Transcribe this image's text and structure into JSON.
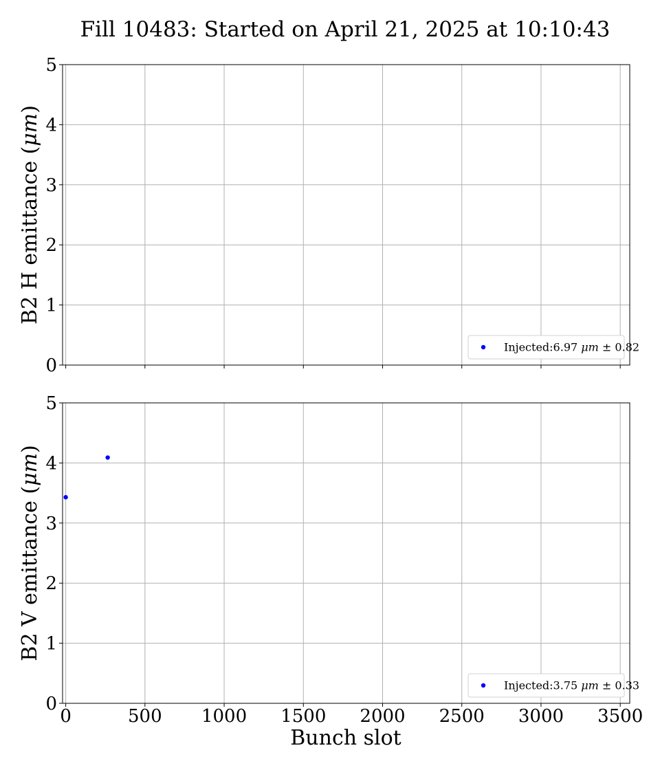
{
  "chart_data": {
    "title": "Fill 10483: Started on April 21, 2025 at 10:10:43",
    "xlabel": "Bunch slot",
    "xlim": [
      -20,
      3560
    ],
    "xticks": [
      0,
      500,
      1000,
      1500,
      2000,
      2500,
      3000,
      3500
    ],
    "marker_color": "#0000ff",
    "grid": true,
    "panels": [
      {
        "type": "scatter",
        "ylabel": "B2 H emittance (μm)",
        "ylabel_parts": [
          "B2 H emittance (",
          "μm",
          ")"
        ],
        "ylim": [
          0,
          5
        ],
        "yticks": [
          0,
          1,
          2,
          3,
          4,
          5
        ],
        "legend_position": "lower right",
        "series": [
          {
            "name": "Injected:6.97 μm ± 0.82",
            "legend_parts": [
              "Injected:6.97 ",
              "μm",
              " ± 0.82"
            ],
            "x": [],
            "y": []
          }
        ]
      },
      {
        "type": "scatter",
        "ylabel": "B2 V emittance (μm)",
        "ylabel_parts": [
          "B2 V emittance (",
          "μm",
          ")"
        ],
        "ylim": [
          0,
          5
        ],
        "yticks": [
          0,
          1,
          2,
          3,
          4,
          5
        ],
        "legend_position": "lower right",
        "series": [
          {
            "name": "Injected:3.75 μm ± 0.33",
            "legend_parts": [
              "Injected:3.75 ",
              "μm",
              " ± 0.33"
            ],
            "x": [
              0,
              265
            ],
            "y": [
              3.43,
              4.09
            ]
          }
        ]
      }
    ]
  }
}
